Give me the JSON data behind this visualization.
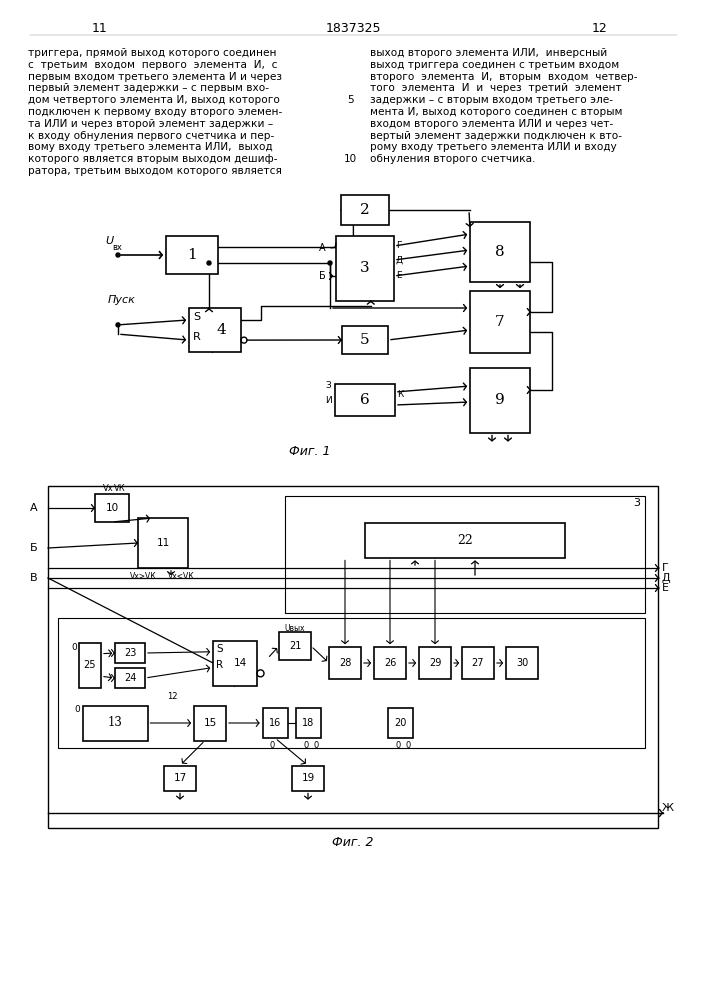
{
  "page_bg": "#ffffff",
  "page_num_left": "11",
  "page_num_center": "1837325",
  "page_num_right": "12",
  "text_left": "триггера, прямой выход которого соединен\nс  третьим  входом  первого  элемента  И,  с\nпервым входом третьего элемента И и через\nпервый элемент задержки – с первым вхо-\nдом четвертого элемента И, выход которого\nподключен к первому входу второго элемен-\nта ИЛИ и через второй элемент задержки –\nк входу обнуления первого счетчика и пер-\nвому входу третьего элемента ИЛИ,  выход\nкоторого является вторым выходом дешиф-\nратора, третьим выходом которого является",
  "text_right": "выход второго элемента ИЛИ,  инверсный\nвыход триггера соединен с третьим входом\nвторого  элемента  И,  вторым  входом  четвер-\nтого  элемента  И  и  через  третий  элемент\nзадержки – с вторым входом третьего эле-\nмента И, выход которого соединен с вторым\nвходом второго элемента ИЛИ и через чет-\nвертый элемент задержки подключен к вто-\nрому входу третьего элемента ИЛИ и входу\nобнуления второго счетчика.",
  "line_number_5": "5",
  "line_number_10": "10",
  "fig1_caption": "Фиг. 1",
  "fig2_caption": "Фиг. 2"
}
